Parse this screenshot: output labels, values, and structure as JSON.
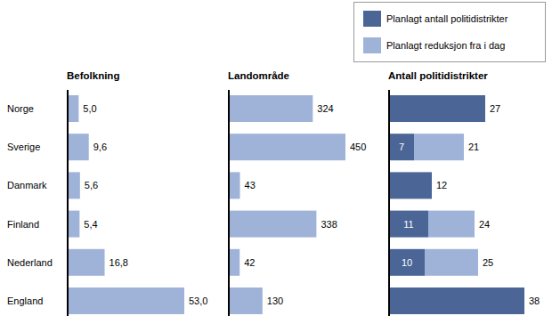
{
  "chart_data": [
    {
      "type": "bar",
      "orientation": "horizontal",
      "title": "Befolkning",
      "categories": [
        "Norge",
        "Sverige",
        "Danmark",
        "Finland",
        "Nederland",
        "England"
      ],
      "values": [
        5.0,
        9.6,
        5.6,
        5.4,
        16.8,
        53.0
      ],
      "value_labels": [
        "5,0",
        "9,6",
        "5,6",
        "5,4",
        "16,8",
        "53,0"
      ],
      "color": "#9fb3d9",
      "xlim": [
        0,
        53
      ],
      "data_labels": true,
      "tick_labels": "y"
    },
    {
      "type": "bar",
      "orientation": "horizontal",
      "title": "Landområde",
      "categories": [
        "Norge",
        "Sverige",
        "Danmark",
        "Finland",
        "Nederland",
        "England"
      ],
      "values": [
        324,
        450,
        43,
        338,
        42,
        130
      ],
      "color": "#9fb3d9",
      "xlim": [
        0,
        450
      ],
      "data_labels": true,
      "tick_labels": false
    },
    {
      "type": "bar",
      "orientation": "horizontal",
      "title": "Antall politidistrikter",
      "categories": [
        "Norge",
        "Sverige",
        "Danmark",
        "Finland",
        "Nederland",
        "England"
      ],
      "stacked": true,
      "series": [
        {
          "name": "Planlagt antall politidistrikter",
          "color": "#4a6596",
          "values": [
            27,
            7,
            12,
            11,
            10,
            38
          ]
        },
        {
          "name": "Planlagt reduksjon fra i dag",
          "color": "#9fb3d9",
          "values": [
            0,
            14,
            0,
            13,
            15,
            0
          ]
        }
      ],
      "totals": [
        27,
        21,
        12,
        24,
        25,
        38
      ],
      "xlim": [
        0,
        38
      ],
      "data_labels": true,
      "tick_labels": false,
      "legend": "top-right"
    }
  ]
}
